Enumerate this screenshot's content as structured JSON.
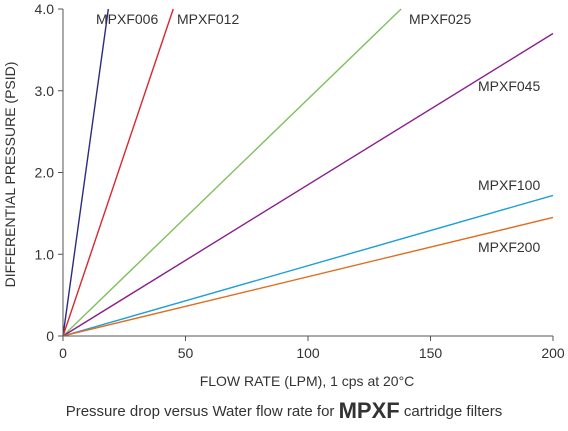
{
  "chart_data": {
    "type": "line",
    "xlabel": "FLOW RATE (LPM), 1 cps at 20°C",
    "ylabel": "DIFFERENTIAL PRESSURE (PSID)",
    "xlim": [
      0,
      200
    ],
    "ylim": [
      0,
      4.0
    ],
    "x_ticks": [
      "0",
      "50",
      "100",
      "150",
      "200"
    ],
    "x_tick_values": [
      0,
      50,
      100,
      150,
      200
    ],
    "y_ticks": [
      "0",
      "1.0",
      "2.0",
      "3.0",
      "4.0"
    ],
    "y_tick_values": [
      0,
      1,
      2,
      3,
      4
    ],
    "grid": false,
    "series": [
      {
        "name": "MPXF006",
        "color": "#2b2d7c",
        "x": [
          0,
          18.5
        ],
        "y": [
          0,
          4.0
        ]
      },
      {
        "name": "MPXF012",
        "color": "#d7282f",
        "x": [
          0,
          45
        ],
        "y": [
          0,
          4.0
        ]
      },
      {
        "name": "MPXF025",
        "color": "#7fbf5e",
        "x": [
          0,
          138
        ],
        "y": [
          0,
          4.0
        ]
      },
      {
        "name": "MPXF045",
        "color": "#8b1f8c",
        "x": [
          0,
          200
        ],
        "y": [
          0,
          3.7
        ]
      },
      {
        "name": "MPXF100",
        "color": "#1e9fd6",
        "x": [
          0,
          200
        ],
        "y": [
          0,
          1.72
        ]
      },
      {
        "name": "MPXF200",
        "color": "#e06c1e",
        "x": [
          0,
          200
        ],
        "y": [
          0,
          1.45
        ]
      }
    ]
  },
  "caption": {
    "prefix": "Pressure drop versus Water flow rate for ",
    "emphasis": "MPXF",
    "suffix": " cartridge filters"
  }
}
